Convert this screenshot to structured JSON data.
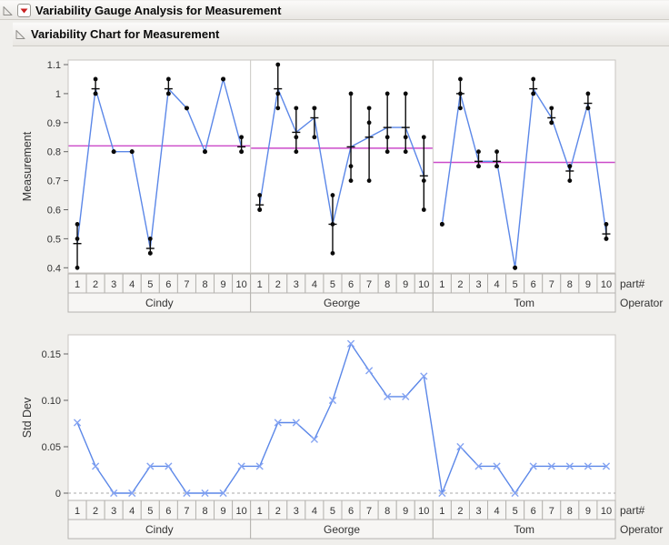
{
  "report": {
    "title1": "Variability Gauge Analysis for Measurement",
    "title2": "Variability Chart for Measurement"
  },
  "axis_labels": {
    "part": "part#",
    "operator": "Operator"
  },
  "colors": {
    "page_bg": "#f0efec",
    "plot_bg": "#ffffff",
    "panel_border": "#c9c6c2",
    "cell_bg": "#f7f6f4",
    "cell_border": "#b5b3af",
    "line_blue": "#5b87e8",
    "marker_blue": "#84a3f2",
    "mean_magenta": "#cb4ac9",
    "point_black": "#0a0a0a",
    "dashed_gray": "#aaaaaa",
    "tick_text": "#333333"
  },
  "chart_data": [
    {
      "type": "line",
      "title": "Variability Chart for Measurement",
      "ylabel": "Measurement",
      "ylim": [
        0.37,
        1.13
      ],
      "yticks": [
        0.4,
        0.5,
        0.6,
        0.7,
        0.8,
        0.9,
        1,
        1.1
      ],
      "ytick_labels": [
        "0.4",
        "0.5",
        "0.6",
        "0.7",
        "0.8",
        "0.9",
        "1",
        "1.1"
      ],
      "categories": [
        "1",
        "2",
        "3",
        "4",
        "5",
        "6",
        "7",
        "8",
        "9",
        "10"
      ],
      "panels": [
        "Cindy",
        "George",
        "Tom"
      ],
      "series": [
        {
          "name": "Cindy",
          "trials": [
            [
              0.55,
              0.5,
              0.4
            ],
            [
              1.05,
              1.0,
              1.0
            ],
            [
              0.8,
              0.8,
              0.8
            ],
            [
              0.8,
              0.8,
              0.8
            ],
            [
              0.5,
              0.45,
              0.45
            ],
            [
              1.05,
              1.0,
              1.0
            ],
            [
              0.95,
              0.95,
              0.95
            ],
            [
              0.8,
              0.8,
              0.8
            ],
            [
              1.05,
              1.05,
              1.05
            ],
            [
              0.85,
              0.8,
              0.8
            ]
          ]
        },
        {
          "name": "George",
          "trials": [
            [
              0.65,
              0.6,
              0.6
            ],
            [
              1.1,
              1.0,
              0.95
            ],
            [
              0.95,
              0.85,
              0.8
            ],
            [
              0.95,
              0.95,
              0.85
            ],
            [
              0.65,
              0.55,
              0.45
            ],
            [
              1.0,
              0.75,
              0.7
            ],
            [
              0.95,
              0.9,
              0.7
            ],
            [
              1.0,
              0.85,
              0.8
            ],
            [
              1.0,
              0.85,
              0.8
            ],
            [
              0.85,
              0.7,
              0.6
            ]
          ]
        },
        {
          "name": "Tom",
          "trials": [
            [
              0.55,
              0.55,
              0.55
            ],
            [
              1.05,
              1.0,
              0.95
            ],
            [
              0.8,
              0.75,
              0.75
            ],
            [
              0.8,
              0.75,
              0.75
            ],
            [
              0.4,
              0.4,
              0.4
            ],
            [
              1.05,
              1.0,
              1.0
            ],
            [
              0.95,
              0.9,
              0.9
            ],
            [
              0.75,
              0.75,
              0.7
            ],
            [
              1.0,
              0.95,
              0.95
            ],
            [
              0.55,
              0.5,
              0.5
            ]
          ]
        }
      ],
      "panel_means": {
        "Cindy": 0.82,
        "George": 0.812,
        "Tom": 0.763
      },
      "grid": false,
      "legend": "none"
    },
    {
      "type": "line",
      "title": "Std Dev Chart",
      "ylabel": "Std Dev",
      "ylim": [
        0,
        0.17
      ],
      "yticks": [
        0,
        0.05,
        0.1,
        0.15
      ],
      "ytick_labels": [
        "0",
        "0.05",
        "0.10",
        "0.15"
      ],
      "categories": [
        "1",
        "2",
        "3",
        "4",
        "5",
        "6",
        "7",
        "8",
        "9",
        "10"
      ],
      "panels": [
        "Cindy",
        "George",
        "Tom"
      ],
      "series": [
        {
          "name": "Cindy",
          "values": [
            0.076,
            0.029,
            0,
            0,
            0.029,
            0.029,
            0,
            0,
            0,
            0.029
          ]
        },
        {
          "name": "George",
          "values": [
            0.029,
            0.076,
            0.076,
            0.058,
            0.1,
            0.161,
            0.132,
            0.104,
            0.104,
            0.126
          ]
        },
        {
          "name": "Tom",
          "values": [
            0,
            0.05,
            0.029,
            0.029,
            0,
            0.029,
            0.029,
            0.029,
            0.029,
            0.029
          ]
        }
      ],
      "zero_line_dashed": true,
      "grid": false,
      "legend": "none"
    }
  ]
}
